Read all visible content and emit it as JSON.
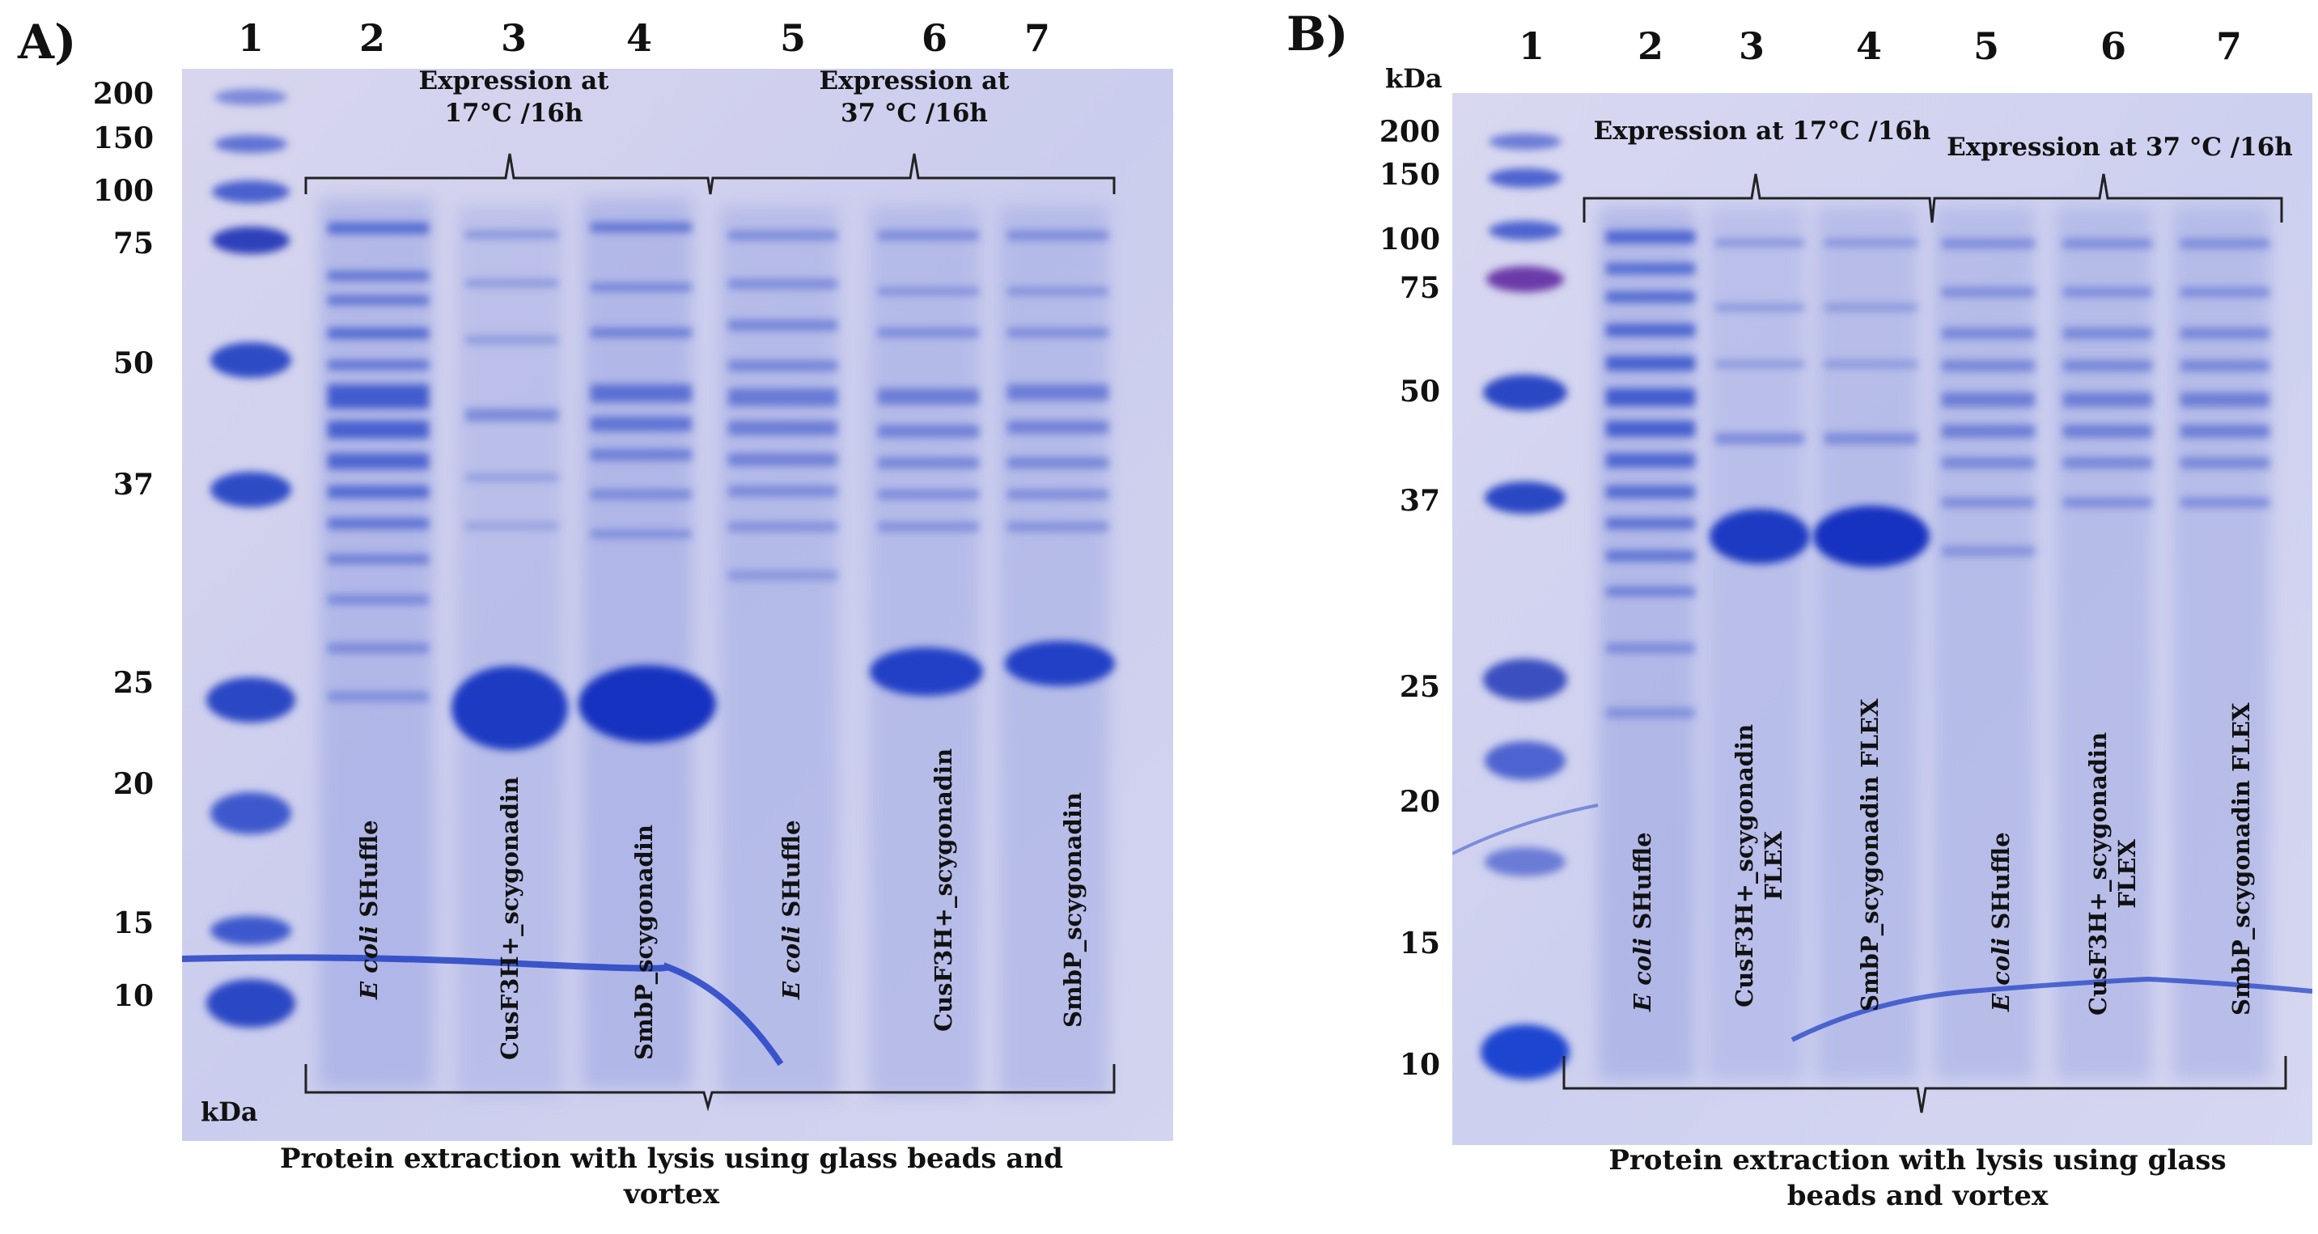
{
  "panel_a": {
    "letter": "A)",
    "lane_numbers": [
      "1",
      "2",
      "3",
      "4",
      "5",
      "6",
      "7"
    ],
    "marker_label_kda": "kDa",
    "markers": [
      "200",
      "150",
      "100",
      "75",
      "50",
      "37",
      "25",
      "20",
      "15",
      "10"
    ],
    "condition_17": "Expression at 17°C /16h",
    "condition_17_line1": "Expression at",
    "condition_17_line2": "17°C /16h",
    "condition_37_line1": "Expression at",
    "condition_37_line2": "37 °C /16h",
    "lane_labels": [
      {
        "italic": "E coli",
        "rest": " SHuffle"
      },
      {
        "italic": "",
        "rest": "CusF3H+_scygonadin"
      },
      {
        "italic": "",
        "rest": "SmbP_scygonadin"
      },
      {
        "italic": "E coli",
        "rest": " SHuffle"
      },
      {
        "italic": "",
        "rest": "CusF3H+_scygonadin"
      },
      {
        "italic": "",
        "rest": "SmbP_scygonadin"
      }
    ],
    "caption_line1": "Protein extraction with lysis using glass beads and",
    "caption_line2": "vortex"
  },
  "panel_b": {
    "letter": "B)",
    "lane_numbers": [
      "1",
      "2",
      "3",
      "4",
      "5",
      "6",
      "7"
    ],
    "marker_label_kda": "kDa",
    "markers": [
      "200",
      "150",
      "100",
      "75",
      "50",
      "37",
      "25",
      "20",
      "15",
      "10"
    ],
    "condition_17": "Expression at 17°C /16h",
    "condition_37": "Expression at 37 °C /16h",
    "lane_labels": [
      {
        "italic": "E coli",
        "rest": " SHuffle",
        "line2": ""
      },
      {
        "italic": "",
        "rest": "CusF3H+_scygonadin",
        "line2": "FLEX"
      },
      {
        "italic": "",
        "rest": "SmbP_scygonadin FLEX",
        "line2": ""
      },
      {
        "italic": "E coli",
        "rest": " SHuffle",
        "line2": ""
      },
      {
        "italic": "",
        "rest": "CusF3H+_scygonadin",
        "line2": "FLEX"
      },
      {
        "italic": "",
        "rest": "SmbP_scygonadin FLEX",
        "line2": ""
      }
    ],
    "caption_line1": "Protein extraction with lysis using glass",
    "caption_line2": "beads and vortex"
  },
  "colors": {
    "gel_background": "#c9cbec",
    "band_dark": "#1f3fc4",
    "band_mid": "#4a63d0",
    "band_light": "#8e9be0"
  }
}
